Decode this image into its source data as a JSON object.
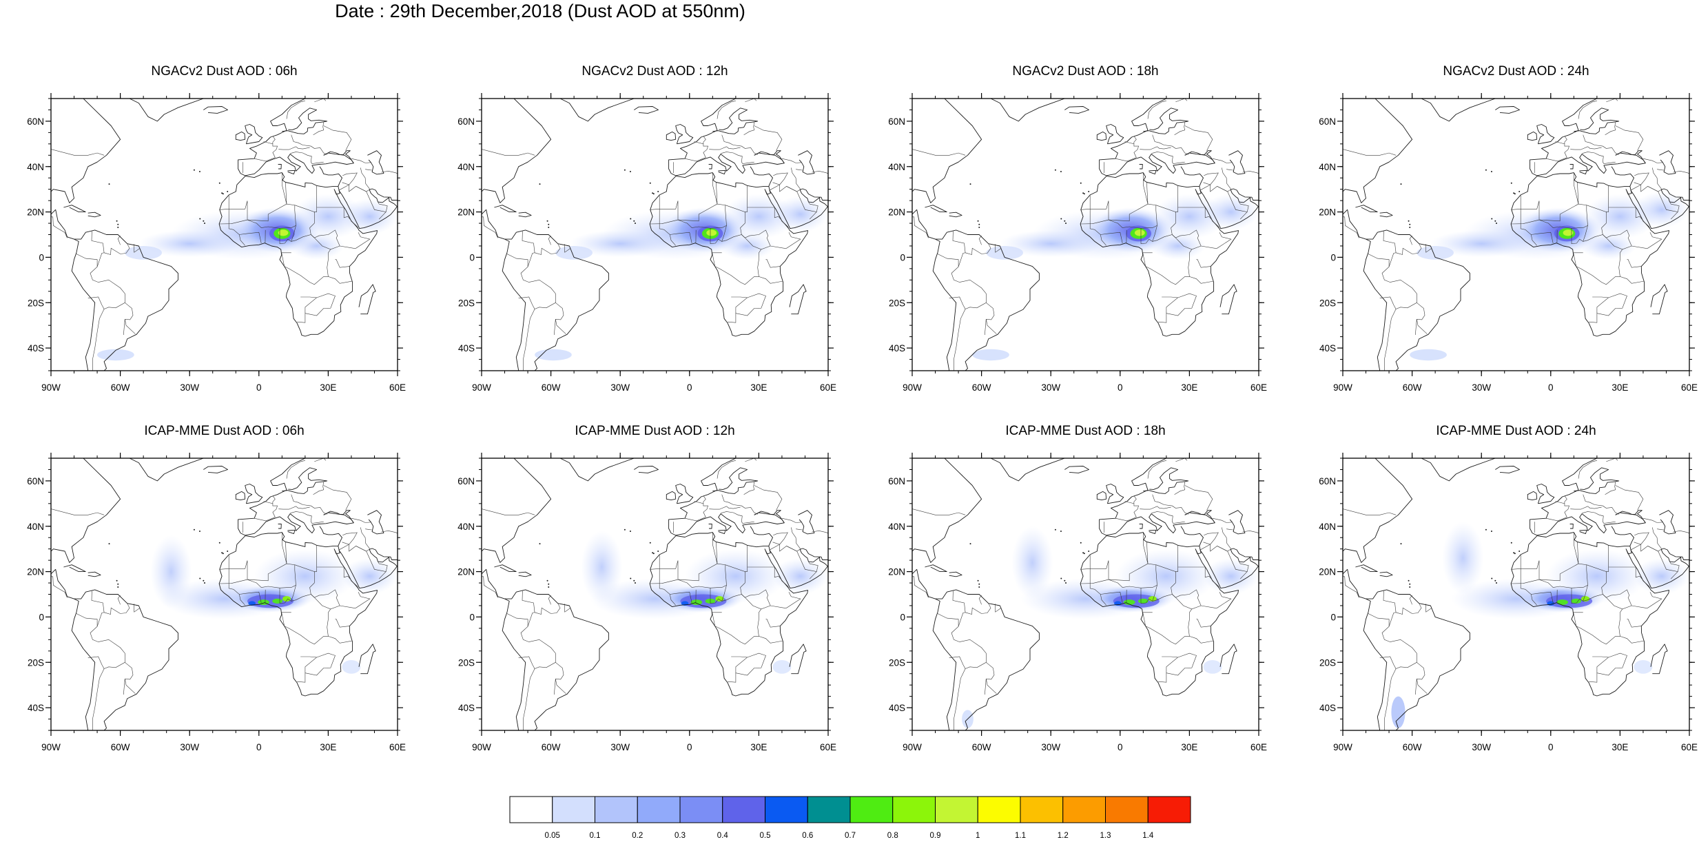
{
  "title": "Date : 29th December,2018 (Dust AOD at 550nm)",
  "axes": {
    "lat_ticks": [
      {
        "value": 60,
        "label": "60N"
      },
      {
        "value": 40,
        "label": "40N"
      },
      {
        "value": 20,
        "label": "20N"
      },
      {
        "value": 0,
        "label": "0"
      },
      {
        "value": -20,
        "label": "20S"
      },
      {
        "value": -40,
        "label": "40S"
      }
    ],
    "lon_ticks": [
      {
        "value": -90,
        "label": "90W"
      },
      {
        "value": -60,
        "label": "60W"
      },
      {
        "value": -30,
        "label": "30W"
      },
      {
        "value": 0,
        "label": "0"
      },
      {
        "value": 30,
        "label": "30E"
      },
      {
        "value": 60,
        "label": "60E"
      }
    ],
    "lon_range": [
      -90,
      60
    ],
    "lat_range": [
      -50,
      70
    ]
  },
  "panels": [
    {
      "title": "NGACv2 Dust AOD : 06h",
      "model": "NGACv2",
      "hour": 6
    },
    {
      "title": "NGACv2 Dust AOD : 12h",
      "model": "NGACv2",
      "hour": 12
    },
    {
      "title": "NGACv2 Dust AOD : 18h",
      "model": "NGACv2",
      "hour": 18
    },
    {
      "title": "NGACv2 Dust AOD : 24h",
      "model": "NGACv2",
      "hour": 24
    },
    {
      "title": "ICAP-MME Dust AOD : 06h",
      "model": "ICAP-MME",
      "hour": 6
    },
    {
      "title": "ICAP-MME Dust AOD : 12h",
      "model": "ICAP-MME",
      "hour": 12
    },
    {
      "title": "ICAP-MME Dust AOD : 18h",
      "model": "ICAP-MME",
      "hour": 18
    },
    {
      "title": "ICAP-MME Dust AOD : 24h",
      "model": "ICAP-MME",
      "hour": 24
    }
  ],
  "colorbar": {
    "labels": [
      "0.05",
      "0.1",
      "0.2",
      "0.3",
      "0.4",
      "0.5",
      "0.6",
      "0.7",
      "0.8",
      "0.9",
      "1",
      "1.1",
      "1.2",
      "1.3",
      "1.4"
    ],
    "colors": [
      "#ffffff",
      "#d3dffd",
      "#b2c4fb",
      "#91aafa",
      "#7b8ef5",
      "#5f63ea",
      "#0a5af2",
      "#008f91",
      "#4fec12",
      "#8cf50a",
      "#c3f533",
      "#fcfc00",
      "#fcc000",
      "#fc9c00",
      "#f97a00",
      "#f71c05"
    ]
  }
}
